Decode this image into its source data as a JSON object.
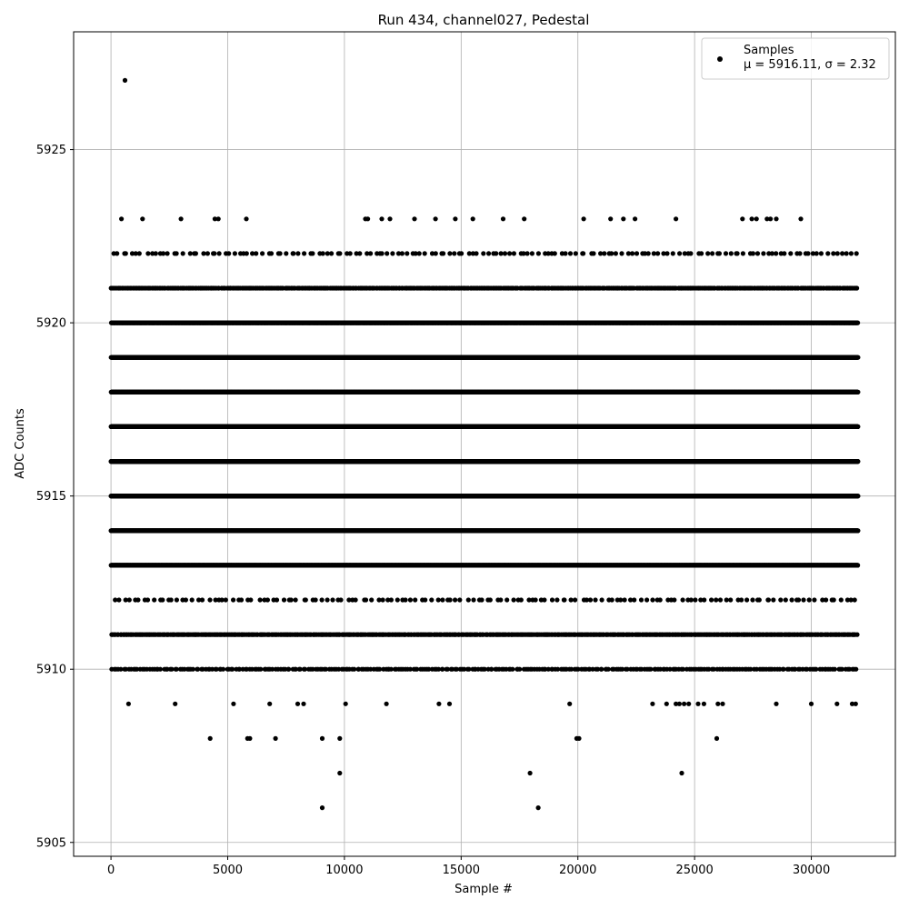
{
  "chart_data": {
    "type": "scatter",
    "title": "Run 434, channel027, Pedestal",
    "xlabel": "Sample #",
    "ylabel": "ADC Counts",
    "xlim": [
      -1600,
      33600
    ],
    "ylim": [
      5904.6,
      5928.4
    ],
    "xticks": [
      0,
      5000,
      10000,
      15000,
      20000,
      25000,
      30000
    ],
    "yticks": [
      5905,
      5910,
      5915,
      5920,
      5925
    ],
    "grid": true,
    "legend_position": "top-right",
    "marker_color": "#000000",
    "series": [
      {
        "name": "Samples",
        "stats_label": "μ = 5916.11, σ = 2.32",
        "x_range": [
          0,
          31999
        ],
        "dense_levels": [
          {
            "y": 5913,
            "count": 2600
          },
          {
            "y": 5914,
            "count": 4600
          },
          {
            "y": 5915,
            "count": 5800
          },
          {
            "y": 5916,
            "count": 6000
          },
          {
            "y": 5917,
            "count": 5500
          },
          {
            "y": 5918,
            "count": 4300
          },
          {
            "y": 5919,
            "count": 2900
          },
          {
            "y": 5920,
            "count": 1400
          },
          {
            "y": 5921,
            "count": 500
          },
          {
            "y": 5911,
            "count": 520
          },
          {
            "y": 5910,
            "count": 320
          },
          {
            "y": 5922,
            "count": 160
          },
          {
            "y": 5912,
            "count": 150
          }
        ],
        "sparse_points": [
          [
            600,
            5927
          ],
          [
            450,
            5923
          ],
          [
            1350,
            5923
          ],
          [
            3000,
            5923
          ],
          [
            4450,
            5923
          ],
          [
            4600,
            5923
          ],
          [
            5800,
            5923
          ],
          [
            10900,
            5923
          ],
          [
            11000,
            5923
          ],
          [
            11600,
            5923
          ],
          [
            11950,
            5923
          ],
          [
            13000,
            5923
          ],
          [
            13900,
            5923
          ],
          [
            14750,
            5923
          ],
          [
            15500,
            5923
          ],
          [
            16800,
            5923
          ],
          [
            17700,
            5923
          ],
          [
            20250,
            5923
          ],
          [
            21400,
            5923
          ],
          [
            21950,
            5923
          ],
          [
            22450,
            5923
          ],
          [
            24200,
            5923
          ],
          [
            27050,
            5923
          ],
          [
            27450,
            5923
          ],
          [
            27650,
            5923
          ],
          [
            28100,
            5923
          ],
          [
            28250,
            5923
          ],
          [
            28500,
            5923
          ],
          [
            29550,
            5923
          ],
          [
            750,
            5909
          ],
          [
            2750,
            5909
          ],
          [
            5250,
            5909
          ],
          [
            6800,
            5909
          ],
          [
            8000,
            5909
          ],
          [
            8250,
            5909
          ],
          [
            10050,
            5909
          ],
          [
            11800,
            5909
          ],
          [
            14050,
            5909
          ],
          [
            14500,
            5909
          ],
          [
            19650,
            5909
          ],
          [
            23200,
            5909
          ],
          [
            23800,
            5909
          ],
          [
            24200,
            5909
          ],
          [
            24350,
            5909
          ],
          [
            24550,
            5909
          ],
          [
            24750,
            5909
          ],
          [
            25150,
            5909
          ],
          [
            25400,
            5909
          ],
          [
            26000,
            5909
          ],
          [
            26200,
            5909
          ],
          [
            28500,
            5909
          ],
          [
            30000,
            5909
          ],
          [
            31100,
            5909
          ],
          [
            31750,
            5909
          ],
          [
            31900,
            5909
          ],
          [
            4250,
            5908
          ],
          [
            5850,
            5908
          ],
          [
            5950,
            5908
          ],
          [
            7050,
            5908
          ],
          [
            9050,
            5908
          ],
          [
            9800,
            5908
          ],
          [
            19950,
            5908
          ],
          [
            20050,
            5908
          ],
          [
            25950,
            5908
          ],
          [
            9800,
            5907
          ],
          [
            17950,
            5907
          ],
          [
            24450,
            5907
          ],
          [
            9050,
            5906
          ],
          [
            18300,
            5906
          ]
        ]
      }
    ]
  }
}
